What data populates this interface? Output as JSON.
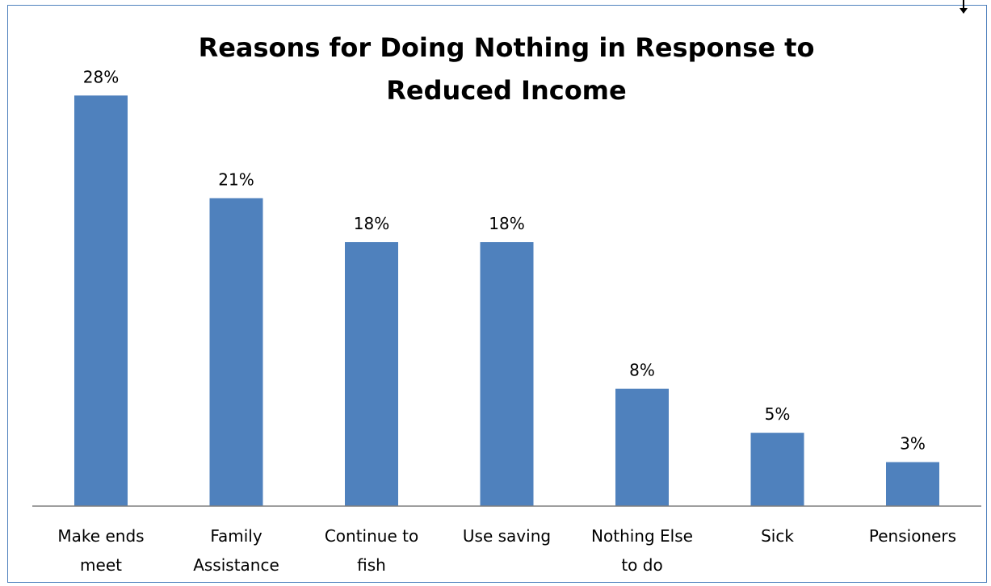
{
  "chart_data": {
    "type": "bar",
    "title_lines": [
      "Reasons for Doing Nothing in Response to",
      "Reduced Income"
    ],
    "categories": [
      [
        "Make ends",
        "meet"
      ],
      [
        "Family",
        "Assistance"
      ],
      [
        "Continue to",
        "fish"
      ],
      [
        "Use saving"
      ],
      [
        "Nothing Else",
        "to do"
      ],
      [
        "Sick"
      ],
      [
        "Pensioners"
      ]
    ],
    "values": [
      28,
      21,
      18,
      18,
      8,
      5,
      3
    ],
    "data_labels": [
      "28%",
      "21%",
      "18%",
      "18%",
      "8%",
      "5%",
      "3%"
    ],
    "xlabel": "",
    "ylabel": "",
    "ylim": [
      0,
      30
    ],
    "grid": false,
    "legend": "none",
    "bar_color": "#4f81bd",
    "axis_color": "#7f7f7f",
    "frame_color": "#4f81bd"
  }
}
